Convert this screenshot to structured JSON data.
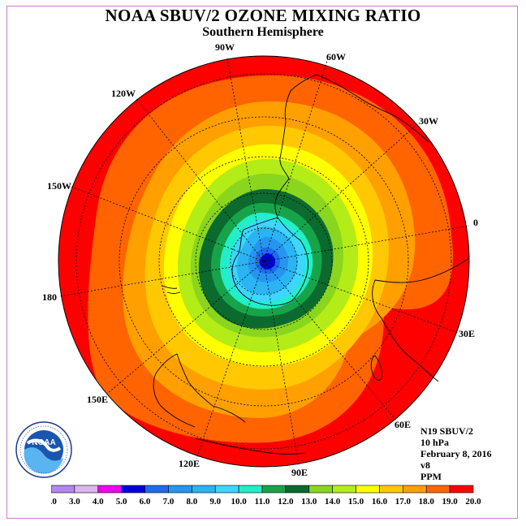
{
  "title": "NOAA SBUV/2 OZONE MIXING RATIO",
  "subtitle": "Southern Hemisphere",
  "longitude_labels": [
    {
      "id": "90w",
      "text": "90W"
    },
    {
      "id": "60w",
      "text": "60W"
    },
    {
      "id": "30w",
      "text": "30W"
    },
    {
      "id": "0",
      "text": "0"
    },
    {
      "id": "30e",
      "text": "30E"
    },
    {
      "id": "60e",
      "text": "60E"
    },
    {
      "id": "90e",
      "text": "90E"
    },
    {
      "id": "120e",
      "text": "120E"
    },
    {
      "id": "150e",
      "text": "150E"
    },
    {
      "id": "180",
      "text": "180"
    },
    {
      "id": "150w",
      "text": "150W"
    },
    {
      "id": "120w",
      "text": "120W"
    }
  ],
  "info": {
    "satellite": "N19 SBUV/2",
    "level": "10 hPa",
    "date": "February 8, 2016",
    "version": "v8",
    "units": "PPM"
  },
  "logo": {
    "text": "NOAA",
    "ring_text": "NATIONAL OCEANIC AND ATMOSPHERIC ADMINISTRATION · U.S. DEPARTMENT OF COMMERCE"
  },
  "colorbar": {
    "labels": [
      "2.0",
      "3.0",
      "4.0",
      "5.0",
      "6.0",
      "7.0",
      "8.0",
      "9.0",
      "10.0",
      "11.0",
      "12.0",
      "13.0",
      "14.0",
      "15.0",
      "16.0",
      "17.0",
      "18.0",
      "19.0",
      "20.0"
    ],
    "colors": [
      "#b388ee",
      "#dcb4ee",
      "#ee00ee",
      "#0000dd",
      "#1e6bef",
      "#2596ef",
      "#2ab4f4",
      "#3cd6ff",
      "#22eec8",
      "#17a34a",
      "#0b6a2e",
      "#8ad61e",
      "#b4ec18",
      "#ffff00",
      "#ffc800",
      "#ff9f00",
      "#ff6400",
      "#ff0000",
      "#8b5a2b"
    ]
  },
  "map_data": {
    "projection": "polar stereographic, south pole centered",
    "contour_levels_ppm": [
      10.0,
      11.0,
      12.0,
      13.0,
      14.0,
      15.0,
      16.0,
      17.0,
      18.0,
      19.0
    ],
    "pole_region_ppm": [
      6.0,
      8.0
    ]
  }
}
